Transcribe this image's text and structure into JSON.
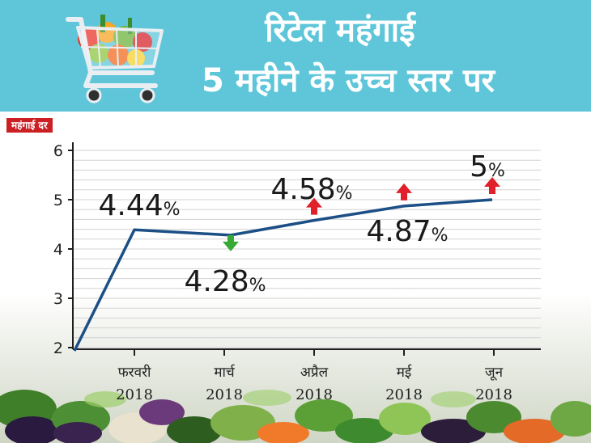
{
  "header": {
    "title_line1": "रिटेल महंगाई",
    "title_line2": "5 महीने के उच्च स्तर पर"
  },
  "colors": {
    "header_bg": "#5fc6da",
    "line": "#1c4f86",
    "up_arrow": "#e0202a",
    "down_arrow": "#39a935",
    "label_bg": "#cc1f24"
  },
  "icons": [
    "shopping-cart-icon",
    "up-arrow-icon",
    "down-arrow-icon"
  ],
  "chart_data": {
    "type": "line",
    "ylabel": "महंगाई दर",
    "ylim": [
      2,
      6
    ],
    "yticks": [
      "2",
      "3",
      "4",
      "5",
      "6"
    ],
    "categories": [
      {
        "month": "फरवरी",
        "year": "2018"
      },
      {
        "month": "मार्च",
        "year": "2018"
      },
      {
        "month": "अप्रैल",
        "year": "2018"
      },
      {
        "month": "मई",
        "year": "2018"
      },
      {
        "month": "जून",
        "year": "2018"
      }
    ],
    "values": [
      4.44,
      4.28,
      4.58,
      4.87,
      5
    ],
    "data_labels": [
      {
        "num": "4.44",
        "pct": "%"
      },
      {
        "num": "4.28",
        "pct": "%"
      },
      {
        "num": "4.58",
        "pct": "%"
      },
      {
        "num": "4.87",
        "pct": "%"
      },
      {
        "num": "5",
        "pct": "%"
      }
    ],
    "trend": [
      "none",
      "down",
      "up",
      "up",
      "up"
    ],
    "grid": true
  }
}
